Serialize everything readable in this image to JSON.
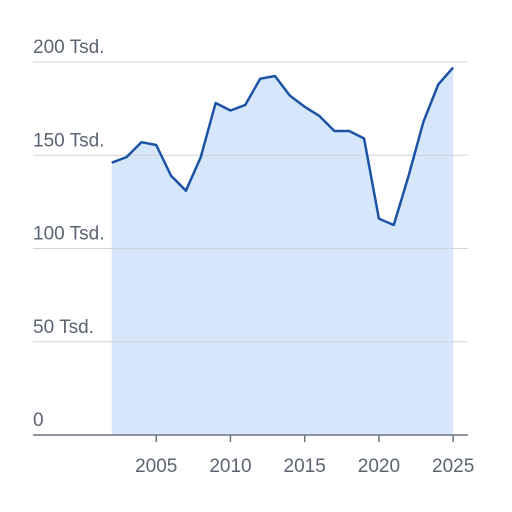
{
  "chart_data": {
    "type": "area",
    "x": [
      2002,
      2003,
      2004,
      2005,
      2006,
      2007,
      2008,
      2009,
      2010,
      2011,
      2012,
      2013,
      2014,
      2015,
      2016,
      2017,
      2018,
      2019,
      2020,
      2021,
      2022,
      2023,
      2024,
      2025
    ],
    "values": [
      146000,
      149000,
      157000,
      155500,
      139000,
      131000,
      149000,
      178000,
      174000,
      177000,
      191000,
      192500,
      182000,
      176000,
      171000,
      163000,
      163000,
      159000,
      116000,
      112600,
      139000,
      168000,
      188000,
      197000
    ],
    "color": "#1c53a4",
    "fill": "#d6e7fb",
    "xlim": [
      1996.7,
      2026
    ],
    "xticks": [
      2005,
      2010,
      2015,
      2020,
      2025
    ],
    "ylim": [
      0,
      200000
    ],
    "yticks": [
      0,
      {
        "value": 50000,
        "label": "50 Tsd."
      },
      {
        "value": 100000,
        "label": "100 Tsd."
      },
      {
        "value": 150000,
        "label": "150 Tsd."
      },
      {
        "value": 200000,
        "label": "200 Tsd."
      }
    ],
    "grid": true
  }
}
